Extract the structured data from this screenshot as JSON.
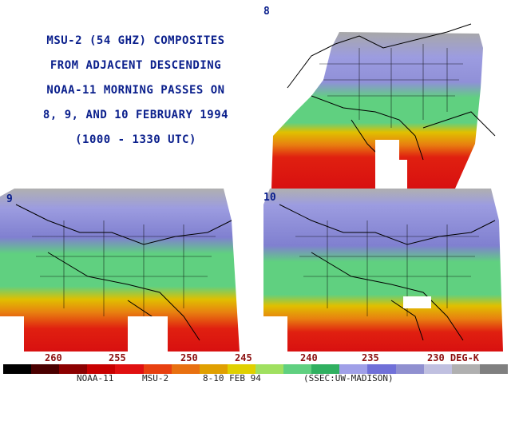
{
  "title": {
    "lines": [
      "MSU-2 (54 GHZ) COMPOSITES",
      "FROM ADJACENT DESCENDING",
      "NOAA-11 MORNING PASSES ON",
      "8, 9, AND 10 FEBRUARY 1994",
      "(1000 - 1330 UTC)"
    ]
  },
  "panels": [
    {
      "label": "8",
      "day": 8
    },
    {
      "label": "9",
      "day": 9
    },
    {
      "label": "10",
      "day": 10
    }
  ],
  "colorbar": {
    "ticks": [
      "260",
      "255",
      "250",
      "245",
      "240",
      "235",
      "230 DEG-K"
    ],
    "colors": [
      "#000000",
      "#4a0000",
      "#8c0000",
      "#c80000",
      "#e01010",
      "#e84010",
      "#e87010",
      "#e0a000",
      "#e0d000",
      "#a0e060",
      "#60d080",
      "#30b060",
      "#a0a0e8",
      "#7070d8",
      "#9090d0",
      "#c0c0e0",
      "#b0b0b0",
      "#808080"
    ]
  },
  "footer": {
    "satellite": "NOAA-11",
    "instrument": "MSU-2",
    "dates": "8-10 FEB 94",
    "credit": "(SSEC:UW-MADISON)"
  }
}
